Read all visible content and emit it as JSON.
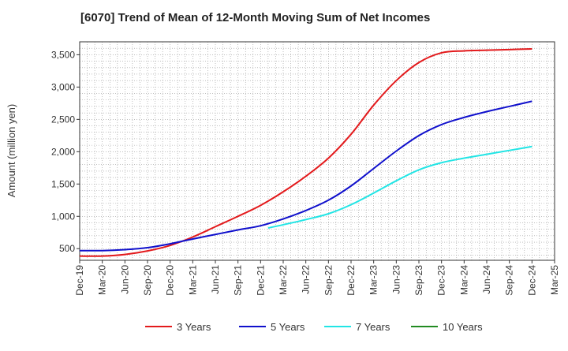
{
  "chart_data": {
    "type": "line",
    "title": "[6070]  Trend of Mean of 12-Month Moving Sum of Net Incomes",
    "ylabel": "Amount (million yen)",
    "xlabel": "",
    "ylim": [
      320,
      3700
    ],
    "yticks": [
      500,
      1000,
      1500,
      2000,
      2500,
      3000,
      3500
    ],
    "ytick_labels": [
      "500",
      "1,000",
      "1,500",
      "2,000",
      "2,500",
      "3,000",
      "3,500"
    ],
    "x_ticks": [
      "Dec-19",
      "Mar-20",
      "Jun-20",
      "Sep-20",
      "Dec-20",
      "Mar-21",
      "Jun-21",
      "Sep-21",
      "Dec-21",
      "Mar-22",
      "Jun-22",
      "Sep-22",
      "Dec-22",
      "Mar-23",
      "Jun-23",
      "Sep-23",
      "Dec-23",
      "Mar-24",
      "Jun-24",
      "Sep-24",
      "Dec-24",
      "Mar-25"
    ],
    "grid": true,
    "legend_position": "bottom",
    "series": [
      {
        "name": "3 Years",
        "color": "#e31a1c",
        "points": [
          [
            "Dec-19",
            385
          ],
          [
            "Mar-20",
            385
          ],
          [
            "Jun-20",
            410
          ],
          [
            "Sep-20",
            465
          ],
          [
            "Dec-20",
            550
          ],
          [
            "Mar-21",
            680
          ],
          [
            "Jun-21",
            840
          ],
          [
            "Sep-21",
            1000
          ],
          [
            "Dec-21",
            1170
          ],
          [
            "Mar-22",
            1380
          ],
          [
            "Jun-22",
            1620
          ],
          [
            "Sep-22",
            1900
          ],
          [
            "Dec-22",
            2270
          ],
          [
            "Mar-23",
            2720
          ],
          [
            "Jun-23",
            3100
          ],
          [
            "Sep-23",
            3380
          ],
          [
            "Dec-23",
            3530
          ],
          [
            "Mar-24",
            3560
          ],
          [
            "Jun-24",
            3570
          ],
          [
            "Sep-24",
            3580
          ],
          [
            "Dec-24",
            3590
          ]
        ]
      },
      {
        "name": "5 Years",
        "color": "#1010cc",
        "points": [
          [
            "Dec-19",
            470
          ],
          [
            "Mar-20",
            470
          ],
          [
            "Jun-20",
            485
          ],
          [
            "Sep-20",
            515
          ],
          [
            "Dec-20",
            575
          ],
          [
            "Mar-21",
            650
          ],
          [
            "Jun-21",
            720
          ],
          [
            "Sep-21",
            790
          ],
          [
            "Dec-21",
            855
          ],
          [
            "Mar-22",
            960
          ],
          [
            "Jun-22",
            1090
          ],
          [
            "Sep-22",
            1250
          ],
          [
            "Dec-22",
            1470
          ],
          [
            "Mar-23",
            1740
          ],
          [
            "Jun-23",
            2010
          ],
          [
            "Sep-23",
            2250
          ],
          [
            "Dec-23",
            2420
          ],
          [
            "Mar-24",
            2530
          ],
          [
            "Jun-24",
            2620
          ],
          [
            "Sep-24",
            2700
          ],
          [
            "Dec-24",
            2780
          ]
        ]
      },
      {
        "name": "7 Years",
        "color": "#22e5e5",
        "points": [
          [
            "Jan-22",
            820
          ],
          [
            "Mar-22",
            870
          ],
          [
            "Jun-22",
            950
          ],
          [
            "Sep-22",
            1040
          ],
          [
            "Dec-22",
            1180
          ],
          [
            "Mar-23",
            1360
          ],
          [
            "Jun-23",
            1550
          ],
          [
            "Sep-23",
            1720
          ],
          [
            "Dec-23",
            1830
          ],
          [
            "Mar-24",
            1900
          ],
          [
            "Jun-24",
            1960
          ],
          [
            "Sep-24",
            2020
          ],
          [
            "Dec-24",
            2080
          ]
        ]
      },
      {
        "name": "10 Years",
        "color": "#228b22",
        "points": []
      }
    ]
  }
}
